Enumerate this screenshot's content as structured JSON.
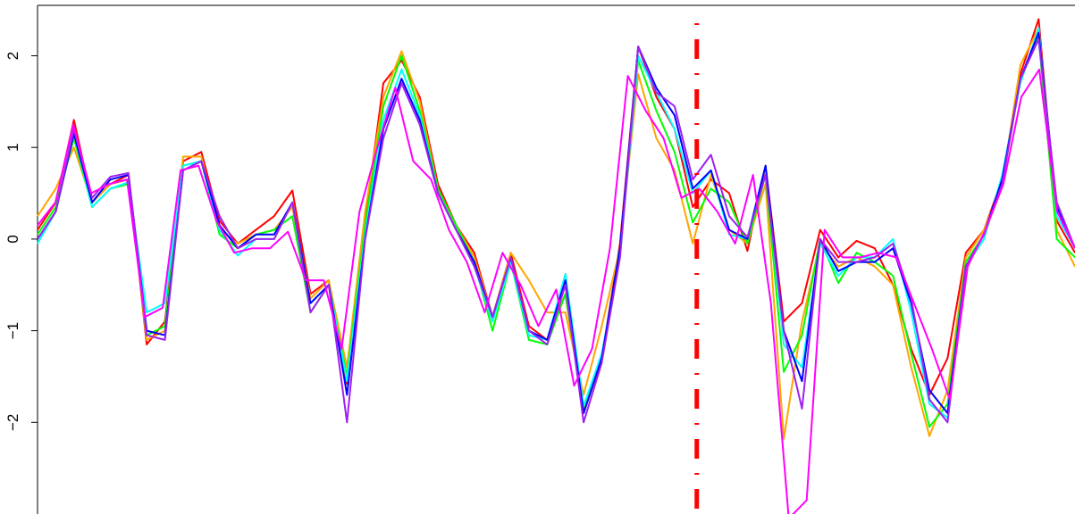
{
  "chart_data": {
    "type": "line",
    "title": "",
    "xlabel": "",
    "ylabel": "",
    "ylim": [
      -3.0,
      2.55
    ],
    "xlim": [
      1,
      80
    ],
    "y_ticks": [
      -2,
      -1,
      0,
      1,
      2
    ],
    "y_tick_labels": [
      "−2",
      "−1",
      "0",
      "1",
      "2"
    ],
    "grid": false,
    "legend": "none",
    "break_x": 51.2,
    "break_color": "#ff0000",
    "series": [
      {
        "color": "#ff0000",
        "values": [
          0.1,
          0.4,
          1.3,
          0.4,
          0.6,
          0.7,
          -1.15,
          -0.9,
          0.85,
          0.95,
          0.2,
          -0.05,
          0.1,
          0.25,
          0.53,
          -0.6,
          -0.45,
          -1.58,
          0.2,
          1.7,
          1.95,
          1.55,
          0.6,
          0.15,
          -0.15,
          -0.85,
          -0.15,
          -0.95,
          -1.1,
          -0.6,
          -1.9,
          -1.3,
          -0.05,
          2.1,
          1.55,
          1.2,
          0.35,
          0.65,
          0.5,
          -0.13,
          0.8,
          -0.9,
          -0.7,
          0.1,
          -0.2,
          -0.02,
          -0.1,
          -0.5,
          -1.2,
          -1.7,
          -1.3,
          -0.15,
          0.1,
          0.65,
          1.8,
          2.4,
          0.2,
          -0.15
        ]
      },
      {
        "color": "#ffa500",
        "values": [
          0.25,
          0.55,
          1.0,
          0.4,
          0.6,
          0.65,
          -1.1,
          -1.0,
          0.9,
          0.9,
          0.1,
          -0.05,
          0.05,
          0.1,
          0.35,
          -0.65,
          -0.45,
          -1.4,
          0.3,
          1.55,
          2.05,
          1.5,
          0.55,
          0.15,
          -0.2,
          -0.85,
          -0.15,
          -0.45,
          -0.8,
          -0.8,
          -1.7,
          -0.95,
          -0.1,
          1.8,
          1.1,
          0.75,
          -0.05,
          0.7,
          0.1,
          -0.05,
          0.6,
          -2.18,
          -0.9,
          -0.05,
          -0.3,
          -0.2,
          -0.3,
          -0.5,
          -1.4,
          -2.15,
          -1.65,
          -0.2,
          0.1,
          0.6,
          1.9,
          2.3,
          0.1,
          -0.3
        ]
      },
      {
        "color": "#00ff00",
        "values": [
          0.05,
          0.35,
          1.1,
          0.35,
          0.55,
          0.6,
          -1.05,
          -0.95,
          0.8,
          0.85,
          0.05,
          -0.1,
          0.05,
          0.1,
          0.25,
          -0.8,
          -0.5,
          -1.5,
          0.15,
          1.45,
          2.0,
          1.4,
          0.55,
          0.15,
          -0.25,
          -1.0,
          -0.25,
          -1.1,
          -1.15,
          -0.6,
          -1.85,
          -1.3,
          -0.1,
          1.95,
          1.4,
          0.95,
          0.18,
          0.55,
          0.4,
          -0.05,
          0.7,
          -1.45,
          -1.05,
          0.0,
          -0.48,
          -0.15,
          -0.25,
          -0.4,
          -1.25,
          -2.05,
          -1.8,
          -0.25,
          0.05,
          0.6,
          1.75,
          2.2,
          0.0,
          -0.2
        ]
      },
      {
        "color": "#00ffff",
        "values": [
          -0.05,
          0.3,
          1.15,
          0.35,
          0.55,
          0.62,
          -0.8,
          -0.7,
          0.8,
          0.85,
          0.1,
          -0.18,
          0.0,
          0.0,
          0.4,
          -0.7,
          -0.5,
          -1.55,
          0.05,
          1.3,
          1.85,
          1.35,
          0.5,
          0.1,
          -0.3,
          -0.9,
          -0.25,
          -1.05,
          -1.1,
          -0.38,
          -1.82,
          -1.25,
          -0.2,
          2.0,
          1.6,
          1.2,
          0.5,
          0.75,
          0.05,
          0.0,
          0.8,
          -1.15,
          -1.4,
          -0.05,
          -0.4,
          -0.2,
          -0.2,
          0.0,
          -0.8,
          -1.8,
          -1.95,
          -0.3,
          0.0,
          0.7,
          1.7,
          2.3,
          0.25,
          -0.1
        ]
      },
      {
        "color": "#0000ff",
        "values": [
          0.0,
          0.3,
          1.15,
          0.4,
          0.65,
          0.7,
          -1.0,
          -1.05,
          0.75,
          0.85,
          0.15,
          -0.1,
          0.05,
          0.05,
          0.4,
          -0.7,
          -0.5,
          -1.7,
          0.0,
          1.2,
          1.75,
          1.3,
          0.5,
          0.1,
          -0.25,
          -0.85,
          -0.2,
          -1.0,
          -1.1,
          -0.45,
          -1.9,
          -1.3,
          -0.1,
          2.1,
          1.65,
          1.35,
          0.55,
          0.75,
          0.1,
          0.0,
          0.8,
          -1.0,
          -1.55,
          0.0,
          -0.35,
          -0.25,
          -0.25,
          -0.1,
          -0.7,
          -1.65,
          -1.9,
          -0.3,
          0.05,
          0.65,
          1.75,
          2.25,
          0.35,
          -0.1
        ]
      },
      {
        "color": "#a020f0",
        "values": [
          0.0,
          0.3,
          1.2,
          0.45,
          0.68,
          0.72,
          -1.05,
          -1.1,
          0.75,
          0.85,
          0.25,
          -0.1,
          0.0,
          0.0,
          0.4,
          -0.8,
          -0.5,
          -2.0,
          0.0,
          1.1,
          1.7,
          1.25,
          0.5,
          0.1,
          -0.3,
          -0.85,
          -0.2,
          -1.0,
          -1.15,
          -0.5,
          -2.0,
          -1.35,
          -0.2,
          2.1,
          1.6,
          1.45,
          0.65,
          0.92,
          0.25,
          0.02,
          0.7,
          -1.0,
          -1.85,
          0.0,
          -0.25,
          -0.25,
          -0.2,
          -0.05,
          -0.65,
          -1.75,
          -2.0,
          -0.3,
          0.05,
          0.6,
          1.75,
          2.18,
          0.4,
          -0.1
        ]
      },
      {
        "color": "#ff00ff",
        "values": [
          0.15,
          0.4,
          1.25,
          0.5,
          0.6,
          0.65,
          -0.85,
          -0.75,
          0.75,
          0.8,
          0.2,
          -0.15,
          -0.1,
          -0.1,
          0.08,
          -0.45,
          -0.45,
          -1.2,
          0.3,
          1.0,
          1.65,
          0.85,
          0.65,
          0.1,
          -0.25,
          -0.8,
          -0.15,
          -0.5,
          -0.95,
          -0.55,
          -1.6,
          -1.2,
          -0.1,
          1.78,
          1.4,
          1.1,
          0.45,
          0.55,
          0.3,
          -0.05,
          0.7,
          -0.7,
          -3.05,
          -2.85,
          0.1,
          -0.2,
          -0.2,
          -0.15,
          -0.2,
          -0.7,
          -1.2,
          -1.75,
          -0.3,
          0.1,
          0.6,
          1.55,
          1.85,
          0.3,
          -0.1
        ]
      }
    ]
  }
}
